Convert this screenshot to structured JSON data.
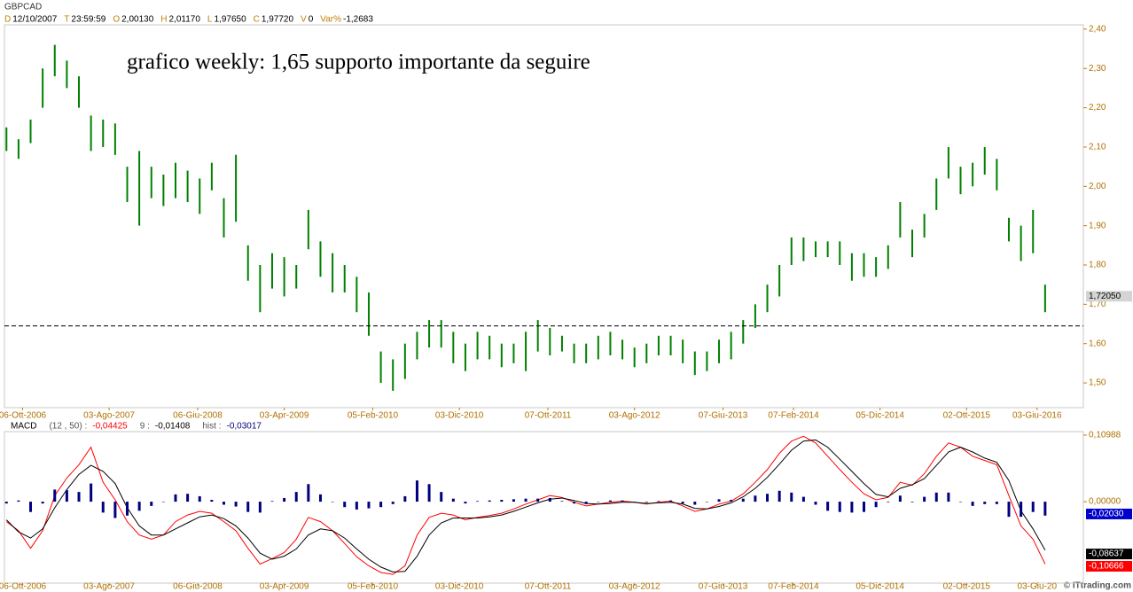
{
  "chart_data": [
    {
      "type": "hlbar",
      "title": "GBPCAD",
      "color": "#008000",
      "info": [
        {
          "key": "D",
          "value": "12/10/2007"
        },
        {
          "key": "T",
          "value": "23:59:59"
        },
        {
          "key": "O",
          "value": "2,00130"
        },
        {
          "key": "H",
          "value": "2,01170"
        },
        {
          "key": "L",
          "value": "1,97650"
        },
        {
          "key": "C",
          "value": "1,97720"
        },
        {
          "key": "V",
          "value": "0"
        },
        {
          "key": "Var%",
          "value": "-1,2683"
        }
      ],
      "annotation": "grafico weekly: 1,65 supporto importante da seguire",
      "hline": 1.645,
      "last_labels": [
        {
          "value": 1.7205,
          "label": "1,72050",
          "color": "#d4d4d4"
        }
      ],
      "xlim": [
        -9,
        527
      ],
      "ylim": [
        1.437,
        2.411
      ],
      "xticks": [
        {
          "value": 0,
          "label": "06-Ott-2006"
        },
        {
          "value": 43,
          "label": "03-Ago-2007"
        },
        {
          "value": 87,
          "label": "06-Giu-2008"
        },
        {
          "value": 130,
          "label": "03-Apr-2009"
        },
        {
          "value": 174,
          "label": "05-Feb-2010"
        },
        {
          "value": 217,
          "label": "03-Dic-2010"
        },
        {
          "value": 261,
          "label": "07-Ott-2011"
        },
        {
          "value": 304,
          "label": "03-Ago-2012"
        },
        {
          "value": 348,
          "label": "07-Giu-2013"
        },
        {
          "value": 383,
          "label": "07-Feb-2014"
        },
        {
          "value": 426,
          "label": "05-Dic-2014"
        },
        {
          "value": 469,
          "label": "02-Ott-2015"
        },
        {
          "value": 504,
          "label": "03-Giu-2016"
        }
      ],
      "yticks": [
        {
          "value": 2.4,
          "label": "2,40"
        },
        {
          "value": 2.3,
          "label": "2,30"
        },
        {
          "value": 2.2,
          "label": "2,20"
        },
        {
          "value": 2.1,
          "label": "2,10"
        },
        {
          "value": 2.0,
          "label": "2,00"
        },
        {
          "value": 1.9,
          "label": "1,90"
        },
        {
          "value": 1.8,
          "label": "1,80"
        },
        {
          "value": 1.7,
          "label": "1,70"
        },
        {
          "value": 1.6,
          "label": "1,60"
        },
        {
          "value": 1.5,
          "label": "1,50"
        }
      ],
      "x": [
        -8,
        -2,
        4,
        10,
        16,
        22,
        28,
        34,
        40,
        46,
        52,
        58,
        64,
        70,
        76,
        82,
        88,
        94,
        100,
        106,
        112,
        118,
        124,
        130,
        136,
        142,
        148,
        154,
        160,
        166,
        172,
        178,
        184,
        190,
        196,
        202,
        208,
        214,
        220,
        226,
        232,
        238,
        244,
        250,
        256,
        262,
        268,
        274,
        280,
        286,
        292,
        298,
        304,
        310,
        316,
        322,
        328,
        334,
        340,
        346,
        352,
        358,
        364,
        370,
        376,
        382,
        388,
        394,
        400,
        406,
        412,
        418,
        424,
        430,
        436,
        442,
        448,
        454,
        460,
        466,
        472,
        478,
        484,
        490,
        496,
        502,
        508
      ],
      "high": [
        2.15,
        2.12,
        2.17,
        2.3,
        2.36,
        2.32,
        2.28,
        2.18,
        2.17,
        2.16,
        2.05,
        2.09,
        2.05,
        2.03,
        2.06,
        2.04,
        2.02,
        2.06,
        1.97,
        2.08,
        1.85,
        1.8,
        1.83,
        1.82,
        1.8,
        1.94,
        1.86,
        1.83,
        1.8,
        1.77,
        1.73,
        1.58,
        1.56,
        1.6,
        1.63,
        1.66,
        1.66,
        1.63,
        1.6,
        1.63,
        1.62,
        1.6,
        1.6,
        1.63,
        1.66,
        1.64,
        1.62,
        1.6,
        1.6,
        1.62,
        1.63,
        1.61,
        1.59,
        1.6,
        1.62,
        1.62,
        1.61,
        1.58,
        1.58,
        1.61,
        1.63,
        1.66,
        1.7,
        1.75,
        1.8,
        1.87,
        1.87,
        1.86,
        1.86,
        1.86,
        1.83,
        1.83,
        1.82,
        1.85,
        1.96,
        1.89,
        1.93,
        2.02,
        2.1,
        2.05,
        2.06,
        2.1,
        2.07,
        1.92,
        1.9,
        1.94,
        1.75
      ],
      "low": [
        2.09,
        2.07,
        2.11,
        2.2,
        2.28,
        2.25,
        2.2,
        2.09,
        2.1,
        2.08,
        1.96,
        1.9,
        1.97,
        1.95,
        1.97,
        1.96,
        1.93,
        1.99,
        1.87,
        1.91,
        1.76,
        1.68,
        1.74,
        1.72,
        1.74,
        1.84,
        1.77,
        1.73,
        1.73,
        1.68,
        1.62,
        1.5,
        1.48,
        1.51,
        1.56,
        1.59,
        1.59,
        1.55,
        1.53,
        1.56,
        1.56,
        1.54,
        1.55,
        1.53,
        1.58,
        1.57,
        1.58,
        1.55,
        1.55,
        1.56,
        1.57,
        1.56,
        1.54,
        1.55,
        1.57,
        1.57,
        1.55,
        1.52,
        1.53,
        1.55,
        1.56,
        1.6,
        1.64,
        1.68,
        1.72,
        1.8,
        1.81,
        1.82,
        1.82,
        1.8,
        1.76,
        1.77,
        1.77,
        1.79,
        1.87,
        1.82,
        1.87,
        1.94,
        2.02,
        1.98,
        2.0,
        2.03,
        1.99,
        1.86,
        1.81,
        1.83,
        1.68
      ]
    },
    {
      "type": "macd",
      "title": "MACD",
      "legend": [
        {
          "label": "(12 , 50) :",
          "value": "-0,04425",
          "color": "#ff0000"
        },
        {
          "label": "9 :",
          "value": "-0,01408",
          "color": "#000000"
        },
        {
          "label": "hist :",
          "value": "-0,03017",
          "color": "#000080"
        }
      ],
      "last_labels": [
        {
          "value": -0.0203,
          "label": "-0,02030",
          "color": "#0000cc"
        },
        {
          "value": -0.08637,
          "label": "-0,08637",
          "color": "#000000"
        },
        {
          "value": -0.10666,
          "label": "-0,10666",
          "color": "#ff0000"
        }
      ],
      "xlim": [
        -9,
        527
      ],
      "ylim": [
        -0.1345,
        0.1157
      ],
      "xticks": [
        {
          "value": 0,
          "label": "06-Ott-2006"
        },
        {
          "value": 43,
          "label": "03-Ago-2007"
        },
        {
          "value": 87,
          "label": "06-Giu-2008"
        },
        {
          "value": 130,
          "label": "03-Apr-2009"
        },
        {
          "value": 174,
          "label": "05-Feb-2010"
        },
        {
          "value": 217,
          "label": "03-Dic-2010"
        },
        {
          "value": 261,
          "label": "07-Ott-2011"
        },
        {
          "value": 304,
          "label": "03-Ago-2012"
        },
        {
          "value": 348,
          "label": "07-Giu-2013"
        },
        {
          "value": 383,
          "label": "07-Feb-2014"
        },
        {
          "value": 426,
          "label": "05-Dic-2014"
        },
        {
          "value": 469,
          "label": "02-Ott-2015"
        },
        {
          "value": 504,
          "label": "03-Giu-20"
        }
      ],
      "yticks": [
        {
          "value": 0.10988,
          "label": "0,10988"
        },
        {
          "value": 0,
          "label": "0,00000"
        }
      ],
      "series": [
        {
          "color": "#ff0000",
          "values": [
            -0.033,
            -0.048,
            -0.077,
            -0.048,
            0.01,
            0.039,
            0.061,
            0.09,
            0.032,
            0.003,
            -0.033,
            -0.055,
            -0.062,
            -0.055,
            -0.033,
            -0.022,
            -0.016,
            -0.019,
            -0.033,
            -0.048,
            -0.077,
            -0.103,
            -0.094,
            -0.084,
            -0.062,
            -0.026,
            -0.033,
            -0.048,
            -0.069,
            -0.091,
            -0.106,
            -0.117,
            -0.12,
            -0.106,
            -0.055,
            -0.026,
            -0.019,
            -0.022,
            -0.03,
            -0.026,
            -0.023,
            -0.019,
            -0.012,
            -0.004,
            0.003,
            0.01,
            0.007,
            -0.001,
            -0.007,
            -0.004,
            -0.001,
            0.001,
            -0.001,
            -0.004,
            -0.001,
            0.001,
            -0.007,
            -0.016,
            -0.012,
            -0.004,
            0.001,
            0.013,
            0.032,
            0.053,
            0.08,
            0.1,
            0.108,
            0.097,
            0.075,
            0.053,
            0.032,
            0.013,
            0.003,
            0.007,
            0.032,
            0.027,
            0.046,
            0.075,
            0.097,
            0.09,
            0.075,
            0.068,
            0.061,
            0.01,
            -0.04,
            -0.062,
            -0.103
          ]
        },
        {
          "color": "#000000",
          "values": [
            -0.03,
            -0.05,
            -0.06,
            -0.045,
            -0.01,
            0.02,
            0.045,
            0.06,
            0.05,
            0.03,
            -0.01,
            -0.04,
            -0.055,
            -0.055,
            -0.045,
            -0.035,
            -0.025,
            -0.022,
            -0.028,
            -0.04,
            -0.06,
            -0.085,
            -0.095,
            -0.09,
            -0.078,
            -0.055,
            -0.045,
            -0.048,
            -0.06,
            -0.078,
            -0.095,
            -0.108,
            -0.116,
            -0.115,
            -0.09,
            -0.055,
            -0.035,
            -0.027,
            -0.027,
            -0.027,
            -0.025,
            -0.022,
            -0.016,
            -0.009,
            -0.002,
            0.004,
            0.006,
            0.002,
            -0.003,
            -0.004,
            -0.003,
            -0.001,
            -0.001,
            -0.003,
            -0.002,
            -0.001,
            -0.004,
            -0.011,
            -0.012,
            -0.008,
            -0.002,
            0.008,
            0.022,
            0.04,
            0.062,
            0.085,
            0.1,
            0.102,
            0.09,
            0.07,
            0.05,
            0.03,
            0.012,
            0.008,
            0.022,
            0.028,
            0.038,
            0.06,
            0.082,
            0.09,
            0.082,
            0.072,
            0.065,
            0.035,
            -0.015,
            -0.045,
            -0.08
          ]
        },
        {
          "color": "#000080",
          "style": "histogram",
          "values": [
            -0.003,
            0.002,
            -0.017,
            -0.003,
            0.02,
            0.019,
            0.016,
            0.03,
            -0.018,
            -0.027,
            -0.023,
            -0.015,
            -0.007,
            0,
            0.012,
            0.013,
            0.009,
            0.003,
            -0.005,
            -0.008,
            -0.017,
            -0.018,
            0.001,
            0.006,
            0.016,
            0.029,
            0.012,
            0,
            -0.009,
            -0.013,
            -0.011,
            -0.009,
            -0.004,
            0.009,
            0.035,
            0.029,
            0.016,
            0.005,
            -0.003,
            0.001,
            0.002,
            0.003,
            0.004,
            0.005,
            0.005,
            0.006,
            0.001,
            -0.003,
            -0.004,
            0,
            0.002,
            0.002,
            0,
            -0.001,
            0.001,
            0.002,
            -0.003,
            -0.005,
            0,
            0.004,
            0.003,
            0.005,
            0.01,
            0.013,
            0.018,
            0.015,
            0.008,
            -0.005,
            -0.015,
            -0.017,
            -0.018,
            -0.017,
            -0.009,
            -0.001,
            0.01,
            -0.001,
            0.008,
            0.015,
            0.015,
            0,
            -0.007,
            -0.004,
            -0.004,
            -0.025,
            -0.025,
            -0.017,
            -0.023
          ]
        }
      ]
    }
  ],
  "footer": "© ITtrading.com"
}
